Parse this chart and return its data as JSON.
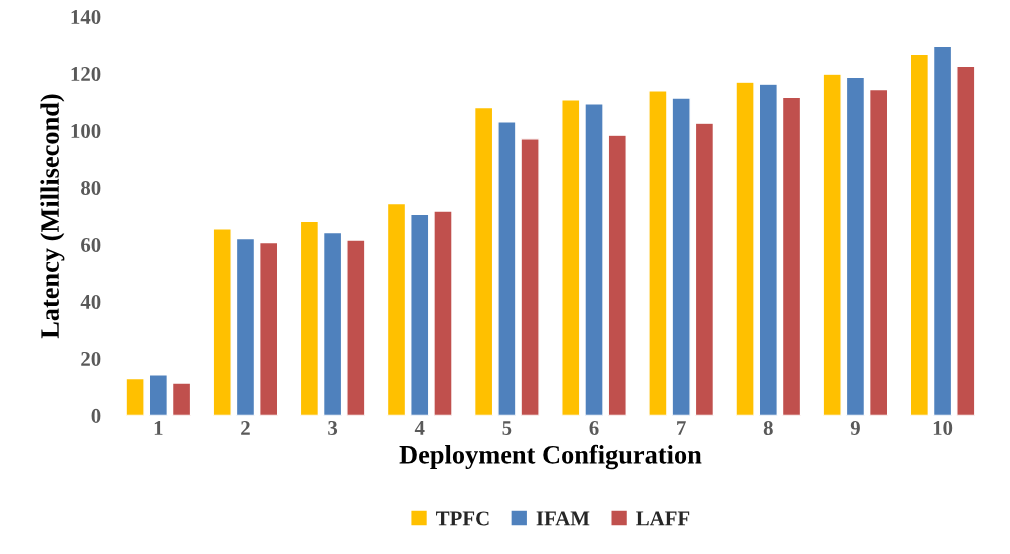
{
  "chart_data": {
    "type": "bar",
    "xlabel": "Deployment Configuration",
    "ylabel": "Latency (Millisecond)",
    "categories": [
      "1",
      "2",
      "3",
      "4",
      "5",
      "6",
      "7",
      "8",
      "9",
      "10"
    ],
    "series": [
      {
        "name": "TPFC",
        "color": "#ffc000",
        "values": [
          13.0,
          65.5,
          68.2,
          74.4,
          108.1,
          110.8,
          114.0,
          117.0,
          119.8,
          126.8
        ]
      },
      {
        "name": "IFAM",
        "color": "#4f81bd",
        "values": [
          14.3,
          62.1,
          64.2,
          70.6,
          103.1,
          109.4,
          111.4,
          116.3,
          118.7,
          129.6
        ]
      },
      {
        "name": "LAFF",
        "color": "#c0504d",
        "values": [
          11.4,
          60.7,
          61.6,
          71.8,
          97.1,
          98.4,
          102.6,
          111.7,
          114.4,
          122.6
        ]
      }
    ],
    "ylim": [
      0,
      140
    ],
    "yticks": [
      0,
      20,
      40,
      60,
      80,
      100,
      120,
      140
    ],
    "grid": false,
    "legend": "bottom"
  }
}
